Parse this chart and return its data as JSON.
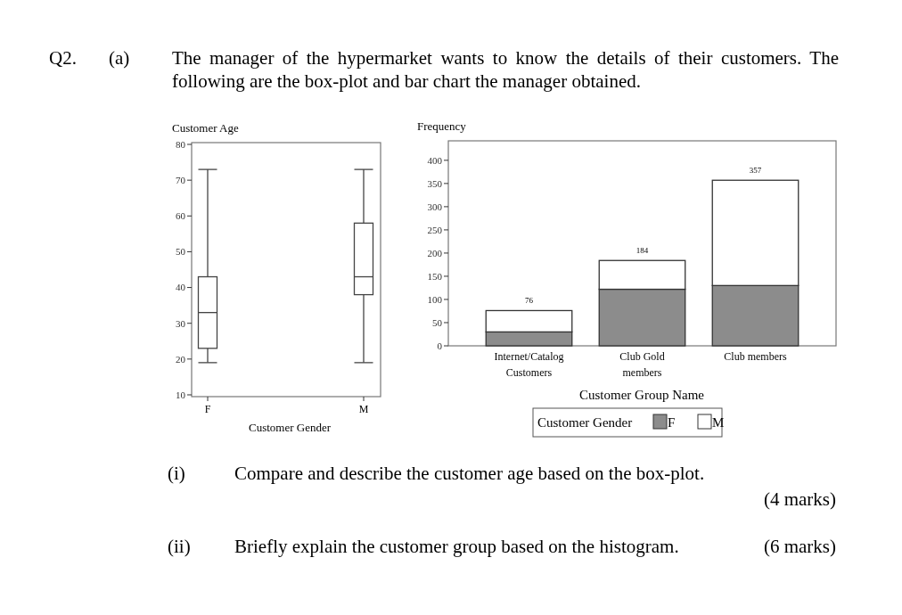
{
  "chart_data": [
    {
      "type": "box",
      "ylabel": "Customer Age",
      "xlabel": "Customer Gender",
      "categories": [
        "F",
        "M"
      ],
      "boxes": [
        {
          "low": 19,
          "q1": 23,
          "median": 33,
          "q3": 43,
          "high": 73
        },
        {
          "low": 19,
          "q1": 38,
          "median": 43,
          "q3": 58,
          "high": 73
        }
      ],
      "ylim": [
        9.5,
        80.5
      ],
      "yticks": [
        10,
        20,
        30,
        40,
        50,
        60,
        70,
        80
      ],
      "annotations": [
        "Q2.",
        "(a)",
        "The manager of the hypermarket wants to know the details of their customers. The following are the box-plot and bar chart the manager obtained.",
        "(i)",
        "Compare and describe the customer age based on the box-plot.",
        "(4 marks)",
        "(ii)",
        "Briefly explain the customer group based on the histogram.",
        "(6 marks)"
      ]
    },
    {
      "type": "bar",
      "stacked": true,
      "ylabel": "Frequency",
      "xlabel": "Customer Group Name",
      "legend_title": "Customer Gender",
      "legend": "bottom",
      "categories": [
        "Internet/Catalog Customers",
        "Club Gold members",
        "Club members"
      ],
      "series": [
        {
          "name": "F",
          "color": "#8c8c8c",
          "values": [
            30,
            122,
            130
          ]
        },
        {
          "name": "M",
          "color": "#ffffff",
          "values": [
            46,
            62,
            227
          ]
        }
      ],
      "totals": [
        "76",
        "184",
        "357"
      ],
      "ylim": [
        0,
        442
      ],
      "yticks": [
        0,
        50,
        100,
        150,
        200,
        250,
        300,
        350,
        400
      ]
    }
  ]
}
